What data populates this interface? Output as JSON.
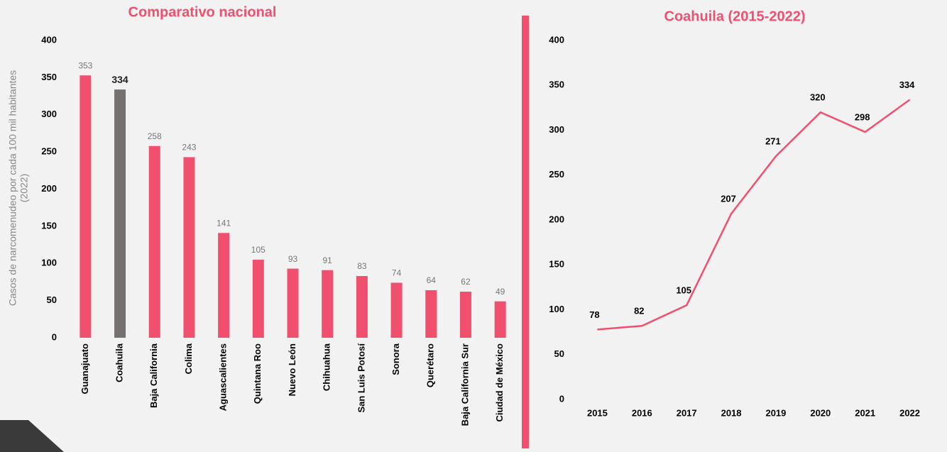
{
  "chart_data": [
    {
      "type": "bar",
      "title": "Comparativo nacional",
      "ylabel": [
        "Casos de narcomenudeo  por cada 100 mil habitantes",
        "(2022)"
      ],
      "categories": [
        "Guanajuato",
        "Coahuila",
        "Baja California",
        "Colima",
        "Aguascalientes",
        "Quintana Roo",
        "Nuevo León",
        "Chihuahua",
        "San Luis Potosí",
        "Sonora",
        "Querétaro",
        "Baja California Sur",
        "Ciudad de México"
      ],
      "values": [
        353,
        334,
        258,
        243,
        141,
        105,
        93,
        91,
        83,
        74,
        64,
        62,
        49
      ],
      "colors": [
        "#f0506e",
        "#767171",
        "#f0506e",
        "#f0506e",
        "#f0506e",
        "#f0506e",
        "#f0506e",
        "#f0506e",
        "#f0506e",
        "#f0506e",
        "#f0506e",
        "#f0506e",
        "#f0506e"
      ],
      "ylim": [
        0,
        400
      ],
      "yticks": [
        0,
        50,
        100,
        150,
        200,
        250,
        300,
        350,
        400
      ]
    },
    {
      "type": "line",
      "title": "Coahuila (2015-2022)",
      "categories": [
        "2015",
        "2016",
        "2017",
        "2018",
        "2019",
        "2020",
        "2021",
        "2022"
      ],
      "values": [
        78,
        82,
        105,
        207,
        271,
        320,
        298,
        334
      ],
      "color": "#f0506e",
      "ylim": [
        0,
        400
      ],
      "yticks": [
        0,
        50,
        100,
        150,
        200,
        250,
        300,
        350,
        400
      ]
    }
  ]
}
